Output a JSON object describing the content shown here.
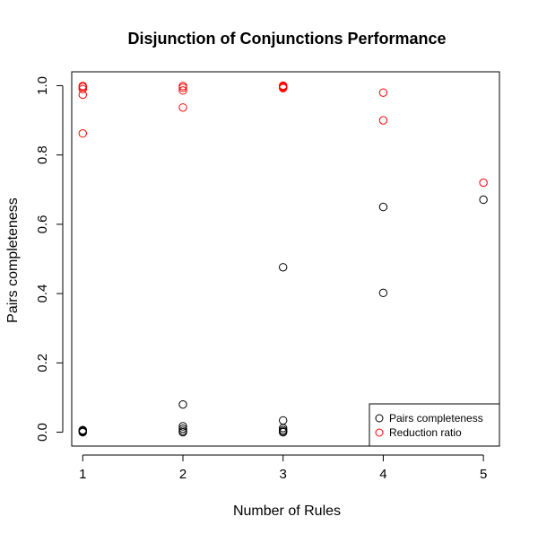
{
  "chart_data": {
    "type": "scatter",
    "title": "Disjunction of Conjunctions Performance",
    "xlabel": "Number of Rules",
    "ylabel": "Pairs completeness",
    "xlim": [
      0.89,
      5.16
    ],
    "ylim": [
      -0.04,
      1.04
    ],
    "x_ticks": [
      1,
      2,
      3,
      4,
      5
    ],
    "y_ticks": [
      0.0,
      0.2,
      0.4,
      0.6,
      0.8,
      1.0
    ],
    "y_tick_labels": [
      "0.0",
      "0.2",
      "0.4",
      "0.6",
      "0.8",
      "1.0"
    ],
    "grid": false,
    "legend_position": "bottom-right",
    "series": [
      {
        "name": "Pairs completeness",
        "color": "#000000",
        "points": [
          {
            "x": 1,
            "y": 0.0
          },
          {
            "x": 1,
            "y": 0.002
          },
          {
            "x": 1,
            "y": 0.004
          },
          {
            "x": 1,
            "y": 0.006
          },
          {
            "x": 2,
            "y": 0.08
          },
          {
            "x": 2,
            "y": 0.017
          },
          {
            "x": 2,
            "y": 0.01
          },
          {
            "x": 2,
            "y": 0.004
          },
          {
            "x": 2,
            "y": 0.0
          },
          {
            "x": 3,
            "y": 0.476
          },
          {
            "x": 3,
            "y": 0.034
          },
          {
            "x": 3,
            "y": 0.012
          },
          {
            "x": 3,
            "y": 0.006
          },
          {
            "x": 3,
            "y": 0.002
          },
          {
            "x": 3,
            "y": 0.0
          },
          {
            "x": 4,
            "y": 0.65
          },
          {
            "x": 4,
            "y": 0.402
          },
          {
            "x": 5,
            "y": 0.671
          }
        ]
      },
      {
        "name": "Reduction ratio",
        "color": "#ff0000",
        "points": [
          {
            "x": 1,
            "y": 0.999
          },
          {
            "x": 1,
            "y": 0.996
          },
          {
            "x": 1,
            "y": 0.99
          },
          {
            "x": 1,
            "y": 0.974
          },
          {
            "x": 1,
            "y": 0.862
          },
          {
            "x": 2,
            "y": 0.999
          },
          {
            "x": 2,
            "y": 0.994
          },
          {
            "x": 2,
            "y": 0.986
          },
          {
            "x": 2,
            "y": 0.937
          },
          {
            "x": 3,
            "y": 1.0
          },
          {
            "x": 3,
            "y": 0.999
          },
          {
            "x": 3,
            "y": 0.997
          },
          {
            "x": 3,
            "y": 0.995
          },
          {
            "x": 3,
            "y": 0.993
          },
          {
            "x": 4,
            "y": 0.98
          },
          {
            "x": 4,
            "y": 0.9
          },
          {
            "x": 5,
            "y": 0.72
          }
        ]
      }
    ]
  }
}
